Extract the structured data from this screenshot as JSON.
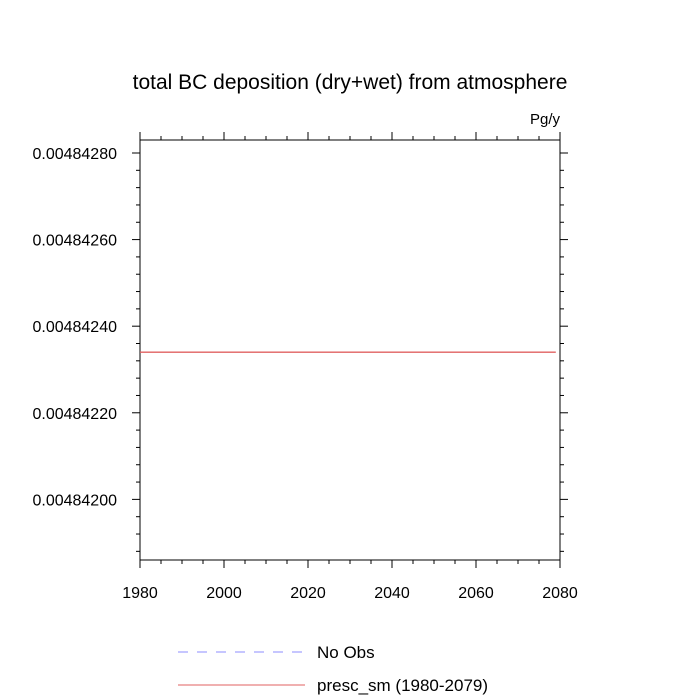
{
  "chart_data": {
    "type": "line",
    "title": "total BC deposition (dry+wet) from atmosphere",
    "units": "Pg/y",
    "ylabel": "",
    "xlabel": "",
    "xlim": [
      1980,
      2080
    ],
    "ylim": [
      0.00484186,
      0.00484283
    ],
    "x_ticks": [
      1980,
      2000,
      2020,
      2040,
      2060,
      2080
    ],
    "x_tick_labels": [
      "1980",
      "2000",
      "2020",
      "2040",
      "2060",
      "2080"
    ],
    "y_ticks": [
      0.004842,
      0.0048422,
      0.0048424,
      0.0048426,
      0.0048428
    ],
    "y_tick_labels": [
      "0.00484200",
      "0.00484220",
      "0.00484240",
      "0.00484260",
      "0.00484280"
    ],
    "grid": false,
    "legend_position": "bottom",
    "series": [
      {
        "name": "No Obs",
        "color": "#8c8cff",
        "dash": "dashed",
        "x": [],
        "y": []
      },
      {
        "name": "presc_sm (1980-2079)",
        "color": "#e06060",
        "dash": "solid",
        "x": [
          1980,
          2079
        ],
        "y": [
          0.00484234,
          0.00484234
        ]
      }
    ]
  }
}
